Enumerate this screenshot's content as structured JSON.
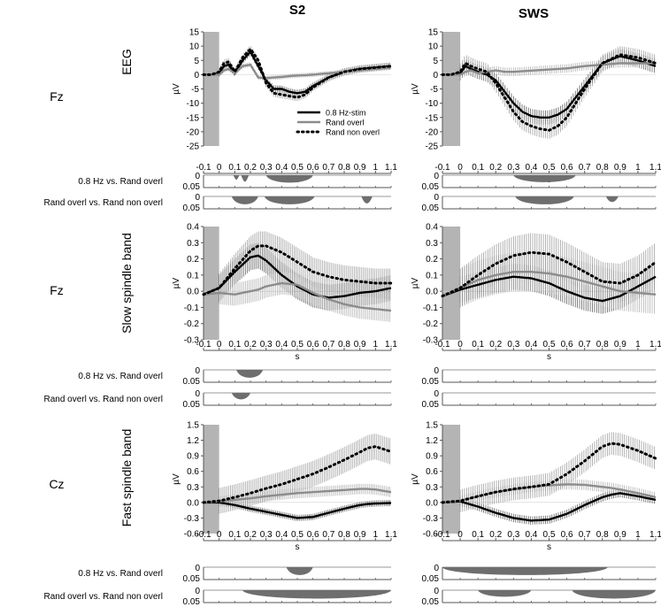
{
  "chart_data": {
    "type": "line",
    "figure": "ERP / spindle band responses by condition",
    "columns": [
      {
        "title": "S2"
      },
      {
        "title": "SWS"
      }
    ],
    "x": {
      "label": "s",
      "lim": [
        -0.1,
        1.1
      ],
      "ticks": [
        -0.1,
        0,
        0.1,
        0.2,
        0.3,
        0.4,
        0.5,
        0.6,
        0.7,
        0.8,
        0.9,
        1,
        1.1
      ],
      "tick_labels": [
        "-0.1",
        "0",
        "0.1",
        "0.2",
        "0.3",
        "0.4",
        "0.5",
        "0.6",
        "0.7",
        "0.8",
        "0.9",
        "1",
        "1.1"
      ],
      "tick_labels_sws": [
        "-0.1",
        "0",
        "0.1",
        "0.2",
        "0.3",
        "0.4",
        "0.5",
        "0.6",
        "0.7",
        "0.8",
        "0.9",
        "1",
        "1.1"
      ],
      "shaded_interval": [
        -0.1,
        0
      ]
    },
    "legend": {
      "placement": "lower-right of S2 EEG panel",
      "entries": [
        "0.8 Hz-stim",
        "Rand overl",
        "Rand non overl"
      ]
    },
    "series_styles": [
      {
        "name": "0.8 Hz-stim",
        "color": "#000000",
        "dash": "solid"
      },
      {
        "name": "Rand overl",
        "color": "#8c8c8c",
        "dash": "solid"
      },
      {
        "name": "Rand non overl",
        "color": "#000000",
        "dash": "dotted"
      }
    ],
    "p_axis": {
      "ticks": [
        "0",
        "0.05"
      ]
    },
    "rows": [
      {
        "id": "eeg",
        "electrode": "Fz",
        "ylabel": "µV",
        "row_label": "EEG",
        "ylim": [
          -25,
          15
        ],
        "yticks": [
          15,
          10,
          5,
          0,
          -5,
          -10,
          -15,
          -20,
          -25
        ],
        "ytick_labels": [
          "15",
          "10",
          "5",
          "0",
          "-5",
          "-10",
          "-15",
          "-20",
          "-25"
        ],
        "panels": {
          "S2": {
            "x": [
              -0.1,
              -0.05,
              0,
              0.03,
              0.06,
              0.1,
              0.15,
              0.2,
              0.25,
              0.3,
              0.35,
              0.4,
              0.45,
              0.5,
              0.55,
              0.6,
              0.7,
              0.8,
              0.9,
              1.0,
              1.1
            ],
            "series": [
              {
                "name": "0.8 Hz-stim",
                "values": [
                  0,
                  0,
                  0.5,
                  3,
                  3.5,
                  0.5,
                  5,
                  8,
                  3,
                  -2,
                  -5,
                  -5,
                  -6,
                  -6.5,
                  -6,
                  -4,
                  -1,
                  1,
                  2,
                  2.5,
                  3
                ],
                "err": 1.2
              },
              {
                "name": "Rand overl",
                "values": [
                  0,
                  0,
                  0,
                  1.5,
                  2,
                  0.5,
                  3,
                  3.5,
                  -1,
                  -1.2,
                  -1,
                  -0.8,
                  -0.5,
                  -0.3,
                  -0.2,
                  0,
                  0.5,
                  1,
                  1.5,
                  2,
                  2.5
                ],
                "err": 0.8
              },
              {
                "name": "Rand non overl",
                "values": [
                  0,
                  0,
                  1,
                  4,
                  4.5,
                  1,
                  6,
                  9,
                  5,
                  -3,
                  -6.5,
                  -7,
                  -7.5,
                  -8,
                  -7,
                  -4.5,
                  -1,
                  1,
                  2,
                  2.5,
                  3
                ],
                "err": 1.3
              }
            ]
          },
          "SWS": {
            "x": [
              -0.1,
              -0.05,
              0,
              0.03,
              0.06,
              0.1,
              0.15,
              0.2,
              0.25,
              0.3,
              0.35,
              0.4,
              0.45,
              0.5,
              0.55,
              0.6,
              0.7,
              0.8,
              0.9,
              1.0,
              1.1
            ],
            "series": [
              {
                "name": "0.8 Hz-stim",
                "values": [
                  0,
                  0,
                  0.5,
                  3,
                  2,
                  1,
                  0,
                  -2,
                  -6,
                  -10,
                  -13,
                  -14.5,
                  -15,
                  -15,
                  -14,
                  -12,
                  -4,
                  4,
                  6.5,
                  5,
                  3
                ],
                "err": 2.5
              },
              {
                "name": "Rand overl",
                "values": [
                  0,
                  0,
                  0,
                  1,
                  1.5,
                  0.5,
                  1,
                  1.5,
                  1,
                  1,
                  1.2,
                  1.4,
                  1.6,
                  1.8,
                  2,
                  2.2,
                  3,
                  3.5,
                  4,
                  4,
                  4
                ],
                "err": 1.5
              },
              {
                "name": "Rand non overl",
                "values": [
                  0,
                  0,
                  1,
                  4,
                  3,
                  2,
                  1,
                  -3,
                  -8,
                  -13,
                  -16.5,
                  -18,
                  -19,
                  -19.5,
                  -18,
                  -15,
                  -5,
                  4,
                  7,
                  6,
                  4
                ],
                "err": 3
              }
            ]
          }
        }
      },
      {
        "id": "slow",
        "electrode": "Fz",
        "ylabel": "µV",
        "row_label": "Slow spindle band",
        "ylim": [
          -0.3,
          0.4
        ],
        "yticks": [
          0.4,
          0.3,
          0.2,
          0.1,
          0,
          -0.1,
          -0.2,
          -0.3
        ],
        "ytick_labels": [
          "0.4",
          "0.3",
          "0.2",
          "0.1",
          "0.0",
          "-0.1",
          "-0.2",
          "-0.3"
        ],
        "panels": {
          "S2": {
            "x": [
              -0.1,
              0,
              0.1,
              0.2,
              0.25,
              0.3,
              0.4,
              0.5,
              0.6,
              0.7,
              0.8,
              0.9,
              1.0,
              1.1
            ],
            "series": [
              {
                "name": "0.8 Hz-stim",
                "values": [
                  -0.02,
                  0.02,
                  0.12,
                  0.21,
                  0.22,
                  0.19,
                  0.1,
                  0.03,
                  -0.02,
                  -0.04,
                  -0.03,
                  -0.01,
                  0.0,
                  0.02
                ],
                "err": 0.08
              },
              {
                "name": "Rand overl",
                "values": [
                  -0.02,
                  -0.01,
                  -0.02,
                  0.0,
                  0.01,
                  0.03,
                  0.05,
                  0.04,
                  -0.01,
                  -0.05,
                  -0.08,
                  -0.1,
                  -0.11,
                  -0.12
                ],
                "err": 0.07
              },
              {
                "name": "Rand non overl",
                "values": [
                  -0.02,
                  0.02,
                  0.14,
                  0.25,
                  0.28,
                  0.28,
                  0.24,
                  0.18,
                  0.12,
                  0.09,
                  0.07,
                  0.06,
                  0.05,
                  0.05
                ],
                "err": 0.09
              }
            ]
          },
          "SWS": {
            "x": [
              -0.1,
              0,
              0.1,
              0.2,
              0.3,
              0.4,
              0.5,
              0.6,
              0.7,
              0.8,
              0.9,
              1.0,
              1.1
            ],
            "series": [
              {
                "name": "0.8 Hz-stim",
                "values": [
                  -0.03,
                  0.01,
                  0.04,
                  0.07,
                  0.09,
                  0.08,
                  0.05,
                  0.0,
                  -0.04,
                  -0.06,
                  -0.03,
                  0.03,
                  0.09
                ],
                "err": 0.08
              },
              {
                "name": "Rand overl",
                "values": [
                  -0.03,
                  0.02,
                  0.07,
                  0.1,
                  0.12,
                  0.12,
                  0.11,
                  0.09,
                  0.06,
                  0.03,
                  0.0,
                  -0.01,
                  -0.02
                ],
                "err": 0.12
              },
              {
                "name": "Rand non overl",
                "values": [
                  -0.03,
                  0.02,
                  0.1,
                  0.17,
                  0.22,
                  0.24,
                  0.23,
                  0.18,
                  0.12,
                  0.06,
                  0.05,
                  0.1,
                  0.18
                ],
                "err": 0.12
              }
            ]
          }
        }
      },
      {
        "id": "fast",
        "electrode": "Cz",
        "ylabel": "µV",
        "row_label": "Fast spindle band",
        "ylim": [
          -0.6,
          1.5
        ],
        "yticks": [
          1.5,
          1.2,
          0.9,
          0.6,
          0.3,
          0,
          -0.3,
          -0.6
        ],
        "ytick_labels": [
          "1.5",
          "1.2",
          "0.9",
          "0.6",
          "0.3",
          "0.0",
          "-0.3",
          "-0.6"
        ],
        "panels": {
          "S2": {
            "x": [
              -0.1,
              0,
              0.1,
              0.2,
              0.3,
              0.4,
              0.5,
              0.6,
              0.7,
              0.8,
              0.9,
              0.95,
              1.0,
              1.1
            ],
            "series": [
              {
                "name": "0.8 Hz-stim",
                "values": [
                  0,
                  0,
                  -0.05,
                  -0.12,
                  -0.18,
                  -0.24,
                  -0.3,
                  -0.28,
                  -0.2,
                  -0.12,
                  -0.05,
                  -0.03,
                  -0.02,
                  -0.01
                ],
                "err": 0.06
              },
              {
                "name": "Rand overl",
                "values": [
                  0,
                  0.02,
                  0.05,
                  0.08,
                  0.12,
                  0.15,
                  0.18,
                  0.2,
                  0.22,
                  0.24,
                  0.26,
                  0.26,
                  0.25,
                  0.2
                ],
                "err": 0.1
              },
              {
                "name": "Rand non overl",
                "values": [
                  0,
                  0.03,
                  0.1,
                  0.18,
                  0.27,
                  0.35,
                  0.45,
                  0.55,
                  0.68,
                  0.82,
                  0.97,
                  1.05,
                  1.08,
                  0.98
                ],
                "err": 0.25
              }
            ]
          },
          "SWS": {
            "x": [
              -0.1,
              0,
              0.1,
              0.2,
              0.3,
              0.4,
              0.5,
              0.6,
              0.7,
              0.8,
              0.85,
              0.9,
              1.0,
              1.1
            ],
            "series": [
              {
                "name": "0.8 Hz-stim",
                "values": [
                  0,
                  0.02,
                  -0.08,
                  -0.2,
                  -0.3,
                  -0.35,
                  -0.33,
                  -0.22,
                  -0.05,
                  0.1,
                  0.15,
                  0.18,
                  0.12,
                  0.05
                ],
                "err": 0.08
              },
              {
                "name": "Rand overl",
                "values": [
                  0,
                  0.03,
                  0.12,
                  0.2,
                  0.25,
                  0.3,
                  0.33,
                  0.35,
                  0.34,
                  0.3,
                  0.28,
                  0.25,
                  0.18,
                  0.1
                ],
                "err": 0.1
              },
              {
                "name": "Rand non overl",
                "values": [
                  0,
                  0.03,
                  0.12,
                  0.2,
                  0.26,
                  0.3,
                  0.35,
                  0.55,
                  0.8,
                  1.08,
                  1.14,
                  1.12,
                  1.0,
                  0.85
                ],
                "err": 0.22
              }
            ]
          }
        }
      }
    ],
    "significance": [
      {
        "row": "eeg",
        "comparisons": [
          {
            "label": "0.8 Hz vs. Rand overl",
            "S2": [
              [
                0.09,
                0.13,
                0.5
              ],
              [
                0.14,
                0.19,
                0.7
              ],
              [
                0.3,
                0.6,
                0.8
              ]
            ],
            "SWS": [
              [
                0.3,
                0.65,
                0.75
              ]
            ]
          },
          {
            "label": "Rand overl vs. Rand non  overl",
            "S2": [
              [
                0.08,
                0.25,
                0.85
              ],
              [
                0.29,
                0.61,
                0.85
              ],
              [
                0.91,
                0.98,
                0.75
              ]
            ],
            "SWS": [
              [
                0.31,
                0.64,
                0.85
              ],
              [
                0.82,
                0.89,
                0.6
              ]
            ]
          }
        ]
      },
      {
        "row": "slow",
        "comparisons": [
          {
            "label": "0.8 Hz vs. Rand overl",
            "S2": [
              [
                0.11,
                0.28,
                0.85
              ]
            ],
            "SWS": []
          },
          {
            "label": "Rand overl vs. Rand non overl",
            "S2": [
              [
                0.08,
                0.2,
                0.7
              ]
            ],
            "SWS": []
          }
        ]
      },
      {
        "row": "fast",
        "comparisons": [
          {
            "label": "0.8 Hz vs. Rand overl",
            "S2": [
              [
                0.43,
                0.6,
                0.85
              ]
            ],
            "SWS": [
              [
                -0.1,
                0.83,
                0.85
              ]
            ]
          },
          {
            "label": "Rand overl vs. Rand non  overl",
            "S2": [
              [
                0.15,
                1.1,
                0.9
              ]
            ],
            "SWS": [
              [
                0.1,
                0.4,
                0.7
              ],
              [
                0.63,
                1.1,
                0.9
              ]
            ]
          }
        ]
      }
    ]
  }
}
